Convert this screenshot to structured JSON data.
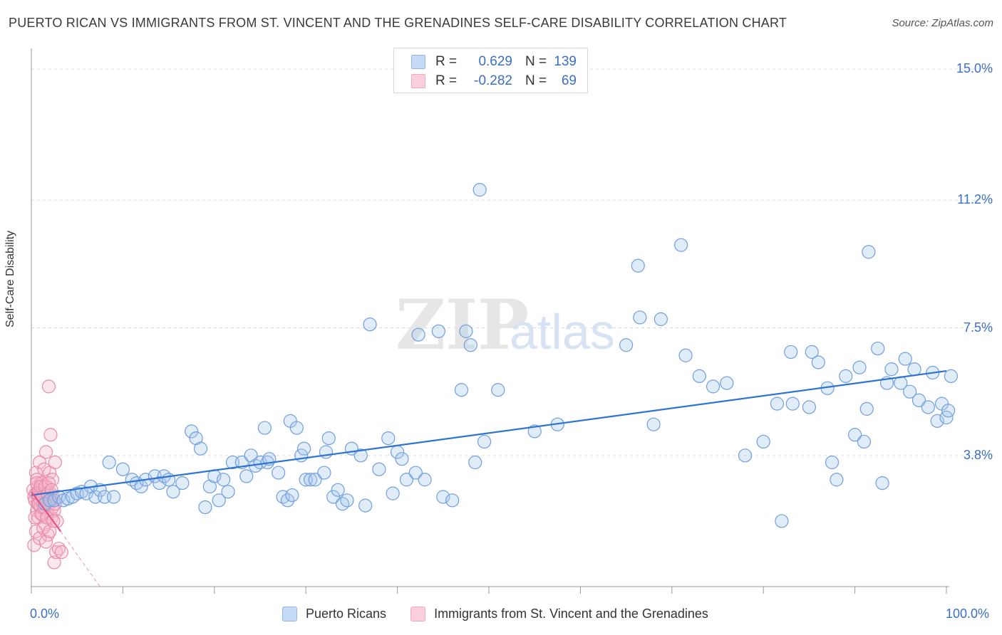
{
  "chart_data": {
    "type": "scatter",
    "title": "PUERTO RICAN VS IMMIGRANTS FROM ST. VINCENT AND THE GRENADINES SELF-CARE DISABILITY CORRELATION CHART",
    "source": "Source: ZipAtlas.com",
    "xlabel": "",
    "ylabel": "Self-Care Disability",
    "xlim": [
      0,
      100
    ],
    "ylim": [
      0,
      15.0
    ],
    "x_tick_labels": [
      "0.0%",
      "100.0%"
    ],
    "y_ticks": [
      3.8,
      7.5,
      11.2,
      15.0
    ],
    "y_tick_labels": [
      "3.8%",
      "7.5%",
      "11.2%",
      "15.0%"
    ],
    "grid": true,
    "watermark": "ZIPatlas",
    "legend": {
      "position": "top-center",
      "entries": [
        {
          "name": "Puerto Ricans",
          "r_label": "R =",
          "r": "0.629",
          "n_label": "N =",
          "n": "139"
        },
        {
          "name": "Immigrants from St. Vincent and the Grenadines",
          "r_label": "R =",
          "r": "-0.282",
          "n_label": "N =",
          "n": "69"
        }
      ]
    },
    "series": [
      {
        "name": "Puerto Ricans",
        "color": "#8fb6e8",
        "line_color": "#2f74d0",
        "trend": {
          "x": [
            0,
            100
          ],
          "y": [
            2.65,
            6.25
          ]
        },
        "points": [
          [
            1.5,
            2.4
          ],
          [
            2,
            2.5
          ],
          [
            2.5,
            2.5
          ],
          [
            3,
            2.6
          ],
          [
            3.5,
            2.5
          ],
          [
            4,
            2.55
          ],
          [
            4.5,
            2.6
          ],
          [
            5,
            2.7
          ],
          [
            5.5,
            2.75
          ],
          [
            6.5,
            2.9
          ],
          [
            6,
            2.7
          ],
          [
            7,
            2.6
          ],
          [
            7.5,
            2.8
          ],
          [
            8,
            2.6
          ],
          [
            8.5,
            3.6
          ],
          [
            9,
            2.6
          ],
          [
            10,
            3.4
          ],
          [
            11,
            3.1
          ],
          [
            11.5,
            3.0
          ],
          [
            12,
            2.9
          ],
          [
            12.5,
            3.1
          ],
          [
            13.5,
            3.2
          ],
          [
            14,
            3.0
          ],
          [
            14.5,
            3.2
          ],
          [
            15,
            3.1
          ],
          [
            15.5,
            2.75
          ],
          [
            16.5,
            3.0
          ],
          [
            17.5,
            4.5
          ],
          [
            18,
            4.3
          ],
          [
            18.5,
            4.0
          ],
          [
            19,
            2.3
          ],
          [
            19.5,
            2.9
          ],
          [
            20,
            3.2
          ],
          [
            20.5,
            2.5
          ],
          [
            21,
            3.1
          ],
          [
            21.5,
            2.75
          ],
          [
            22,
            3.6
          ],
          [
            23,
            3.6
          ],
          [
            23.5,
            3.2
          ],
          [
            24,
            3.8
          ],
          [
            24.5,
            3.5
          ],
          [
            25,
            3.6
          ],
          [
            25.5,
            4.6
          ],
          [
            25.8,
            3.6
          ],
          [
            26,
            3.7
          ],
          [
            27,
            3.3
          ],
          [
            27.5,
            2.6
          ],
          [
            28,
            2.5
          ],
          [
            28.5,
            2.65
          ],
          [
            28.3,
            4.8
          ],
          [
            29,
            4.6
          ],
          [
            29.5,
            3.8
          ],
          [
            29.8,
            4.0
          ],
          [
            30,
            3.1
          ],
          [
            30.5,
            3.1
          ],
          [
            31,
            3.1
          ],
          [
            32,
            3.3
          ],
          [
            32.2,
            3.9
          ],
          [
            32.5,
            4.3
          ],
          [
            33,
            2.6
          ],
          [
            33.5,
            2.8
          ],
          [
            34,
            2.4
          ],
          [
            34.5,
            2.5
          ],
          [
            35,
            4.0
          ],
          [
            36,
            3.8
          ],
          [
            36.5,
            2.35
          ],
          [
            37,
            7.6
          ],
          [
            38,
            3.4
          ],
          [
            39,
            4.3
          ],
          [
            39.5,
            2.7
          ],
          [
            40,
            3.9
          ],
          [
            40.5,
            3.7
          ],
          [
            41,
            3.1
          ],
          [
            42,
            3.3
          ],
          [
            42.3,
            7.3
          ],
          [
            43,
            3.1
          ],
          [
            44.5,
            7.4
          ],
          [
            45,
            2.6
          ],
          [
            46,
            2.5
          ],
          [
            47,
            5.7
          ],
          [
            47.5,
            7.4
          ],
          [
            48,
            7.0
          ],
          [
            48.5,
            3.6
          ],
          [
            49,
            11.5
          ],
          [
            49.5,
            4.2
          ],
          [
            51,
            5.7
          ],
          [
            55,
            4.5
          ],
          [
            57.5,
            4.7
          ],
          [
            65,
            7.0
          ],
          [
            66.3,
            9.3
          ],
          [
            66.5,
            7.8
          ],
          [
            68,
            4.7
          ],
          [
            68.8,
            7.75
          ],
          [
            71,
            9.9
          ],
          [
            71.5,
            6.7
          ],
          [
            73,
            6.1
          ],
          [
            74.5,
            5.8
          ],
          [
            76,
            5.9
          ],
          [
            78,
            3.8
          ],
          [
            80,
            4.2
          ],
          [
            81.5,
            5.3
          ],
          [
            82,
            1.9
          ],
          [
            83,
            6.8
          ],
          [
            83.2,
            5.3
          ],
          [
            85,
            5.2
          ],
          [
            85.3,
            6.8
          ],
          [
            86,
            6.5
          ],
          [
            87,
            5.75
          ],
          [
            87.5,
            3.6
          ],
          [
            88,
            3.1
          ],
          [
            89,
            6.1
          ],
          [
            90,
            4.4
          ],
          [
            90.5,
            6.35
          ],
          [
            91,
            4.2
          ],
          [
            91.3,
            5.15
          ],
          [
            91.5,
            9.7
          ],
          [
            92.5,
            6.9
          ],
          [
            93,
            3.0
          ],
          [
            93.5,
            5.9
          ],
          [
            94,
            6.3
          ],
          [
            95,
            5.9
          ],
          [
            95.5,
            6.6
          ],
          [
            96,
            5.65
          ],
          [
            96.5,
            6.3
          ],
          [
            97,
            5.4
          ],
          [
            98,
            5.2
          ],
          [
            98.5,
            6.2
          ],
          [
            99,
            4.8
          ],
          [
            99.5,
            5.3
          ],
          [
            100,
            4.9
          ],
          [
            100.2,
            5.1
          ],
          [
            100.5,
            6.1
          ]
        ]
      },
      {
        "name": "Immigrants from St. Vincent and the Grenadines",
        "color": "#f2a7c0",
        "line_color": "#e05585",
        "trend": {
          "x": [
            0,
            3.2
          ],
          "y": [
            2.75,
            1.6
          ]
        },
        "trend_dashed": {
          "x": [
            3.2,
            7.5
          ],
          "y": [
            1.6,
            0.0
          ]
        },
        "points": [
          [
            0.2,
            2.8
          ],
          [
            0.3,
            2.6
          ],
          [
            0.4,
            2.5
          ],
          [
            0.5,
            2.7
          ],
          [
            0.5,
            3.3
          ],
          [
            0.6,
            2.2
          ],
          [
            0.6,
            3.1
          ],
          [
            0.7,
            2.9
          ],
          [
            0.7,
            2.4
          ],
          [
            0.8,
            2.6
          ],
          [
            0.8,
            2.0
          ],
          [
            0.9,
            2.8
          ],
          [
            0.9,
            3.6
          ],
          [
            1.0,
            2.5
          ],
          [
            1.0,
            2.3
          ],
          [
            1.1,
            2.7
          ],
          [
            1.1,
            3.0
          ],
          [
            1.2,
            2.9
          ],
          [
            1.2,
            2.1
          ],
          [
            1.3,
            2.6
          ],
          [
            1.3,
            2.4
          ],
          [
            1.4,
            2.8
          ],
          [
            1.4,
            3.4
          ],
          [
            1.5,
            2.5
          ],
          [
            1.5,
            1.8
          ],
          [
            1.6,
            2.7
          ],
          [
            1.6,
            3.9
          ],
          [
            1.7,
            2.2
          ],
          [
            1.7,
            2.9
          ],
          [
            1.8,
            2.6
          ],
          [
            1.8,
            1.5
          ],
          [
            1.9,
            2.5
          ],
          [
            1.9,
            5.8
          ],
          [
            2.0,
            2.4
          ],
          [
            2.0,
            3.3
          ],
          [
            2.1,
            2.7
          ],
          [
            2.1,
            4.4
          ],
          [
            2.2,
            2.5
          ],
          [
            2.2,
            2.0
          ],
          [
            2.3,
            2.3
          ],
          [
            2.3,
            3.1
          ],
          [
            2.4,
            2.6
          ],
          [
            2.5,
            2.2
          ],
          [
            2.5,
            0.7
          ],
          [
            2.6,
            3.6
          ],
          [
            2.7,
            1.0
          ],
          [
            2.8,
            1.9
          ],
          [
            0.3,
            1.2
          ],
          [
            0.4,
            2.0
          ],
          [
            0.5,
            1.6
          ],
          [
            0.6,
            3.0
          ],
          [
            0.7,
            2.7
          ],
          [
            0.8,
            2.4
          ],
          [
            0.9,
            1.4
          ],
          [
            1.0,
            2.9
          ],
          [
            1.1,
            2.1
          ],
          [
            1.2,
            2.6
          ],
          [
            1.3,
            1.7
          ],
          [
            1.4,
            2.3
          ],
          [
            1.5,
            2.9
          ],
          [
            1.6,
            1.3
          ],
          [
            1.7,
            2.0
          ],
          [
            1.8,
            2.7
          ],
          [
            1.9,
            3.0
          ],
          [
            2.0,
            1.6
          ],
          [
            2.2,
            2.8
          ],
          [
            2.4,
            1.9
          ],
          [
            2.6,
            2.4
          ],
          [
            3.0,
            1.1
          ],
          [
            3.3,
            1.0
          ]
        ]
      }
    ]
  }
}
